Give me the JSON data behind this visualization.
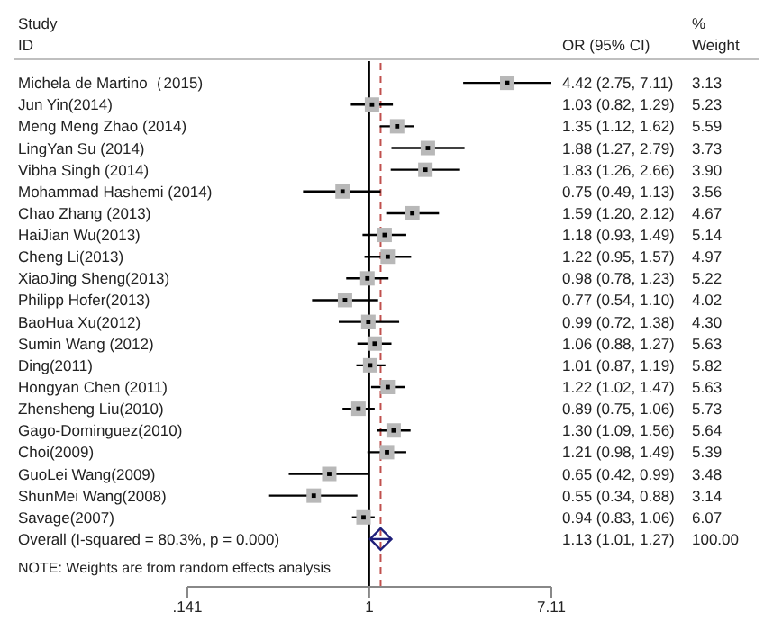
{
  "chart_data": {
    "type": "scatter",
    "orientation": "horizontal",
    "log": "x",
    "categories": [
      "Michela de Martino（2015)",
      "Jun Yin(2014)",
      "Meng Meng Zhao (2014)",
      "LingYan Su (2014)",
      "Vibha Singh (2014)",
      "Mohammad Hashemi (2014)",
      "Chao Zhang (2013)",
      "HaiJian Wu(2013)",
      "Cheng Li(2013)",
      "XiaoJing Sheng(2013)",
      "Philipp Hofer(2013)",
      "BaoHua Xu(2012)",
      "Sumin Wang (2012)",
      "Ding(2011)",
      "Hongyan Chen (2011)",
      "Zhensheng Liu(2010)",
      "Gago-Dominguez(2010)",
      "Choi(2009)",
      "GuoLei Wang(2009)",
      "ShunMei Wang(2008)",
      "Savage(2007)",
      "Overall  (I-squared = 80.3%, p = 0.000)"
    ],
    "xlim": [
      0.141,
      7.11
    ],
    "xticks": [
      {
        "value": 0.141,
        "label": ".141"
      },
      1,
      7.11
    ],
    "series": [
      {
        "marker": "square",
        "color": "#000000",
        "values": [
          4.42,
          1.03,
          1.35,
          1.88,
          1.83,
          0.75,
          1.59,
          1.18,
          1.22,
          0.98,
          0.77,
          0.99,
          1.06,
          1.01,
          1.22,
          0.89,
          1.3,
          1.21,
          0.65,
          0.55,
          0.94,
          null
        ],
        "errors": [
          [
            2.75,
            7.11
          ],
          [
            0.82,
            1.29
          ],
          [
            1.12,
            1.62
          ],
          [
            1.27,
            2.79
          ],
          [
            1.26,
            2.66
          ],
          [
            0.49,
            1.13
          ],
          [
            1.2,
            2.12
          ],
          [
            0.93,
            1.49
          ],
          [
            0.95,
            1.57
          ],
          [
            0.78,
            1.23
          ],
          [
            0.54,
            1.1
          ],
          [
            0.72,
            1.38
          ],
          [
            0.88,
            1.27
          ],
          [
            0.87,
            1.19
          ],
          [
            1.02,
            1.47
          ],
          [
            0.75,
            1.06
          ],
          [
            1.09,
            1.56
          ],
          [
            0.98,
            1.49
          ],
          [
            0.42,
            0.99
          ],
          [
            0.34,
            0.88
          ],
          [
            0.83,
            1.06
          ],
          null
        ],
        "value_labels": [
          "4.42 (2.75, 7.11)",
          "1.03 (0.82, 1.29)",
          "1.35 (1.12, 1.62)",
          "1.88 (1.27, 2.79)",
          "1.83 (1.26, 2.66)",
          "0.75 (0.49, 1.13)",
          "1.59 (1.20, 2.12)",
          "1.18 (0.93, 1.49)",
          "1.22 (0.95, 1.57)",
          "0.98 (0.78, 1.23)",
          "0.77 (0.54, 1.10)",
          "0.99 (0.72, 1.38)",
          "1.06 (0.88, 1.27)",
          "1.01 (0.87, 1.19)",
          "1.22 (1.02, 1.47)",
          "0.89 (0.75, 1.06)",
          "1.30 (1.09, 1.56)",
          "1.21 (0.98, 1.49)",
          "0.65 (0.42, 0.99)",
          "0.55 (0.34, 0.88)",
          "0.94 (0.83, 1.06)",
          null
        ]
      },
      {
        "marker": "diamond",
        "color": "#1f1f7a",
        "values": [
          null,
          null,
          null,
          null,
          null,
          null,
          null,
          null,
          null,
          null,
          null,
          null,
          null,
          null,
          null,
          null,
          null,
          null,
          null,
          null,
          null,
          1.13
        ],
        "errors": [
          null,
          null,
          null,
          null,
          null,
          null,
          null,
          null,
          null,
          null,
          null,
          null,
          null,
          null,
          null,
          null,
          null,
          null,
          null,
          null,
          null,
          [
            1.01,
            1.27
          ]
        ],
        "value_labels": [
          null,
          null,
          null,
          null,
          null,
          null,
          null,
          null,
          null,
          null,
          null,
          null,
          null,
          null,
          null,
          null,
          null,
          null,
          null,
          null,
          null,
          null
        ]
      }
    ],
    "ref_lines": [
      {
        "axis": "x",
        "value": 1,
        "color": "#000000",
        "line_style": "solid"
      },
      {
        "axis": "x",
        "value": 1.13,
        "color": "#c0504d",
        "line_style": "dashed"
      }
    ],
    "annotations": [
      "Study",
      "ID",
      "OR (95% CI)",
      "%",
      "Weight",
      "NOTE: Weights are from random effects analysis",
      "3.13",
      "5.23",
      "5.59",
      "3.73",
      "3.90",
      "3.56",
      "4.67",
      "5.14",
      "4.97",
      "5.22",
      "4.02",
      "4.30",
      "5.63",
      "5.82",
      "5.63",
      "5.73",
      "5.64",
      "5.39",
      "3.48",
      "3.14",
      "6.07",
      "100.00",
      "1.13 (1.01, 1.27)"
    ]
  }
}
